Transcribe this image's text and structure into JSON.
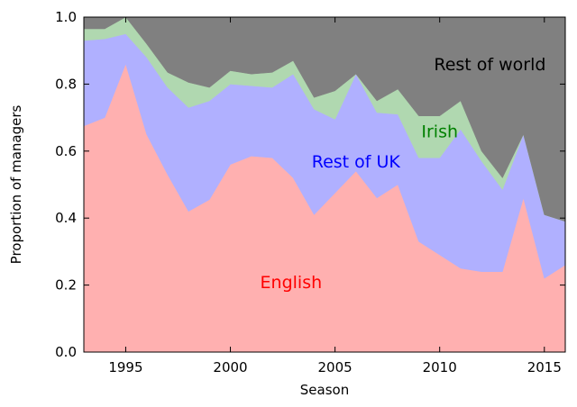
{
  "chart_data": {
    "type": "area",
    "stacked": true,
    "normalized": true,
    "xlabel": "Season",
    "ylabel": "Proportion of managers",
    "xlim": [
      1993,
      2016
    ],
    "ylim": [
      0.0,
      1.0
    ],
    "xticks": [
      1995,
      2000,
      2005,
      2010,
      2015
    ],
    "yticks": [
      "0.0",
      "0.2",
      "0.4",
      "0.6",
      "0.8",
      "1.0"
    ],
    "grid": false,
    "legend": "none",
    "x": [
      1993,
      1994,
      1995,
      1996,
      1997,
      1998,
      1999,
      2000,
      2001,
      2002,
      2003,
      2004,
      2005,
      2006,
      2007,
      2008,
      2009,
      2010,
      2011,
      2012,
      2013,
      2014,
      2015,
      2016
    ],
    "series": [
      {
        "name": "English",
        "color": "#ffb0b0",
        "label_color": "#ff0000",
        "label_at": [
          2002.9,
          0.21
        ],
        "values": [
          0.675,
          0.7,
          0.86,
          0.65,
          0.53,
          0.42,
          0.455,
          0.56,
          0.585,
          0.58,
          0.52,
          0.41,
          0.475,
          0.54,
          0.46,
          0.5,
          0.33,
          0.29,
          0.25,
          0.24,
          0.24,
          0.46,
          0.22,
          0.26
        ]
      },
      {
        "name": "Rest of UK",
        "color": "#b0b0ff",
        "label_color": "#0000ff",
        "label_at": [
          2006.0,
          0.57
        ],
        "values": [
          0.255,
          0.235,
          0.09,
          0.23,
          0.26,
          0.31,
          0.295,
          0.24,
          0.21,
          0.21,
          0.31,
          0.315,
          0.22,
          0.29,
          0.255,
          0.21,
          0.25,
          0.29,
          0.415,
          0.33,
          0.245,
          0.19,
          0.19,
          0.13
        ]
      },
      {
        "name": "Irish",
        "color": "#b0d8b0",
        "label_color": "#008000",
        "label_at": [
          2010.0,
          0.66
        ],
        "values": [
          0.035,
          0.03,
          0.05,
          0.04,
          0.045,
          0.075,
          0.04,
          0.04,
          0.035,
          0.045,
          0.04,
          0.035,
          0.085,
          0.0,
          0.035,
          0.075,
          0.125,
          0.125,
          0.085,
          0.03,
          0.035,
          0.0,
          0.0,
          0.0
        ]
      },
      {
        "name": "Rest of world",
        "color": "#808080",
        "label_color": "#000000",
        "label_at": [
          2012.4,
          0.86
        ],
        "values": [
          0.035,
          0.035,
          0.0,
          0.08,
          0.165,
          0.195,
          0.21,
          0.16,
          0.17,
          0.165,
          0.13,
          0.24,
          0.22,
          0.17,
          0.25,
          0.215,
          0.295,
          0.295,
          0.25,
          0.4,
          0.48,
          0.35,
          0.59,
          0.61
        ]
      }
    ]
  }
}
